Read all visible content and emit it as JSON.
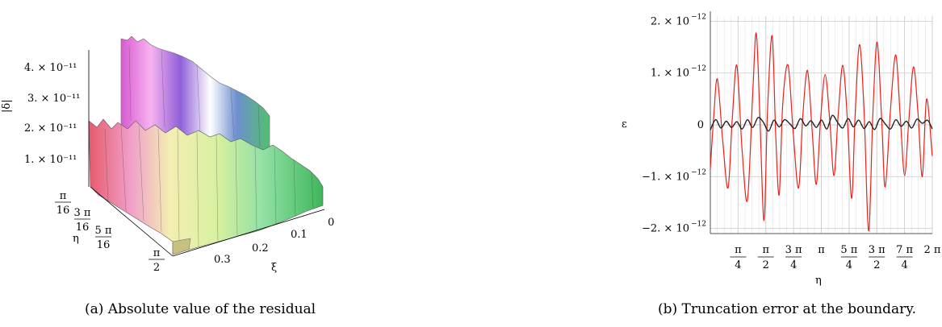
{
  "captions": {
    "a": "(a) Absolute value of the residual",
    "b": "(b) Truncation error at the boundary."
  },
  "chart_data": [
    {
      "type": "surface",
      "zlabel": "|δ|",
      "ylabel": "η",
      "xlabel": "ξ",
      "z_ticks": [
        "1. × 10⁻¹¹",
        "2. × 10⁻¹¹",
        "3. × 10⁻¹¹",
        "4. × 10⁻¹¹"
      ],
      "eta_ticks": [
        {
          "num": "π",
          "den": "16"
        },
        {
          "num": "3 π",
          "den": "16"
        },
        {
          "num": "5 π",
          "den": "16"
        },
        {
          "num": "π",
          "den": "2"
        }
      ],
      "xi_ticks": [
        "0",
        "0.1",
        "0.2",
        "0.3"
      ],
      "xlim": [
        0,
        0.35
      ],
      "ylim_text": "0 to π/2",
      "zlim": [
        0,
        4.6e-11
      ]
    },
    {
      "type": "line",
      "ylabel": "ε",
      "xlabel": "η",
      "xlim": [
        0,
        6.2832
      ],
      "ylim": [
        -2.1e-12,
        2.1e-12
      ],
      "y_ticks": [
        {
          "value": 2e-12,
          "label": "2. × 10"
        },
        {
          "value": 1e-12,
          "label": "1. × 10"
        },
        {
          "value": 0,
          "label": "0"
        },
        {
          "value": -1e-12,
          "label": "−1. × 10"
        },
        {
          "value": -2e-12,
          "label": "−2. × 10"
        }
      ],
      "y_exp": "−12",
      "x_ticks": [
        {
          "value": 0.7854,
          "num": "π",
          "den": "4"
        },
        {
          "value": 1.5708,
          "num": "π",
          "den": "2"
        },
        {
          "value": 2.3562,
          "num": "3 π",
          "den": "4"
        },
        {
          "value": 3.1416,
          "num": "π",
          "den": ""
        },
        {
          "value": 3.927,
          "num": "5 π",
          "den": "4"
        },
        {
          "value": 4.7124,
          "num": "3 π",
          "den": "2"
        },
        {
          "value": 5.4978,
          "num": "7 π",
          "den": "4"
        },
        {
          "value": 6.2832,
          "num": "2 π",
          "den": ""
        }
      ],
      "grid": true,
      "series": [
        {
          "color": "#e8221b",
          "x": [
            0,
            0.1,
            0.2,
            0.35,
            0.5,
            0.62,
            0.75,
            0.9,
            1.05,
            1.2,
            1.3,
            1.4,
            1.52,
            1.62,
            1.75,
            1.85,
            1.95,
            2.05,
            2.2,
            2.35,
            2.5,
            2.62,
            2.75,
            2.88,
            3.0,
            3.12,
            3.25,
            3.38,
            3.5,
            3.62,
            3.75,
            3.88,
            4.0,
            4.1,
            4.22,
            4.35,
            4.48,
            4.6,
            4.72,
            4.85,
            4.95,
            5.1,
            5.25,
            5.38,
            5.5,
            5.62,
            5.75,
            5.88,
            6.0,
            6.12,
            6.28
          ],
          "y": [
            -8.5e-13,
            2e-13,
            8.8e-13,
            -3e-13,
            -1.22e-12,
            1e-13,
            1.15e-12,
            -5e-13,
            -1.45e-12,
            6e-13,
            1.77e-12,
            2e-13,
            -1.85e-12,
            3e-13,
            1.72e-12,
            -2e-13,
            -1.35e-12,
            4e-13,
            1.15e-12,
            -2e-13,
            -1.22e-12,
            2e-13,
            1.05e-12,
            -1e-13,
            -1.15e-12,
            1e-13,
            9.7e-13,
            1e-13,
            -9.8e-13,
            2e-13,
            1.15e-12,
            1e-13,
            -1.42e-12,
            2e-13,
            1.55e-12,
            3e-13,
            -2.05e-12,
            2e-13,
            1.6e-12,
            1e-13,
            -1.2e-12,
            3e-13,
            1.35e-12,
            1e-13,
            -9.8e-13,
            1e-13,
            1.12e-12,
            2e-13,
            -1e-12,
            5e-13,
            -6e-13
          ]
        },
        {
          "color": "#222222",
          "x": [
            0,
            0.15,
            0.3,
            0.45,
            0.6,
            0.75,
            0.9,
            1.05,
            1.2,
            1.35,
            1.5,
            1.65,
            1.8,
            1.95,
            2.1,
            2.25,
            2.4,
            2.55,
            2.7,
            2.85,
            3.0,
            3.15,
            3.3,
            3.45,
            3.6,
            3.75,
            3.9,
            4.05,
            4.2,
            4.35,
            4.5,
            4.65,
            4.8,
            4.95,
            5.1,
            5.25,
            5.4,
            5.55,
            5.7,
            5.85,
            6.0,
            6.15,
            6.28
          ],
          "y": [
            -1e-13,
            1e-13,
            -6e-14,
            7e-14,
            -5e-14,
            6e-14,
            -8e-14,
            1e-13,
            -5e-14,
            1.4e-13,
            5e-14,
            -1.2e-13,
            9e-14,
            -4e-14,
            1e-13,
            2e-14,
            -7e-14,
            1.2e-13,
            -2e-14,
            8e-14,
            -5e-14,
            9e-14,
            -8e-14,
            1.8e-13,
            5e-14,
            -6e-14,
            1.2e-13,
            -4e-14,
            9e-14,
            -7e-14,
            6e-14,
            -9e-14,
            1.2e-13,
            2e-14,
            -8e-14,
            1e-13,
            -3e-14,
            7e-14,
            -6e-14,
            1.1e-13,
            3e-14,
            9e-14,
            -8e-14
          ]
        }
      ]
    }
  ]
}
